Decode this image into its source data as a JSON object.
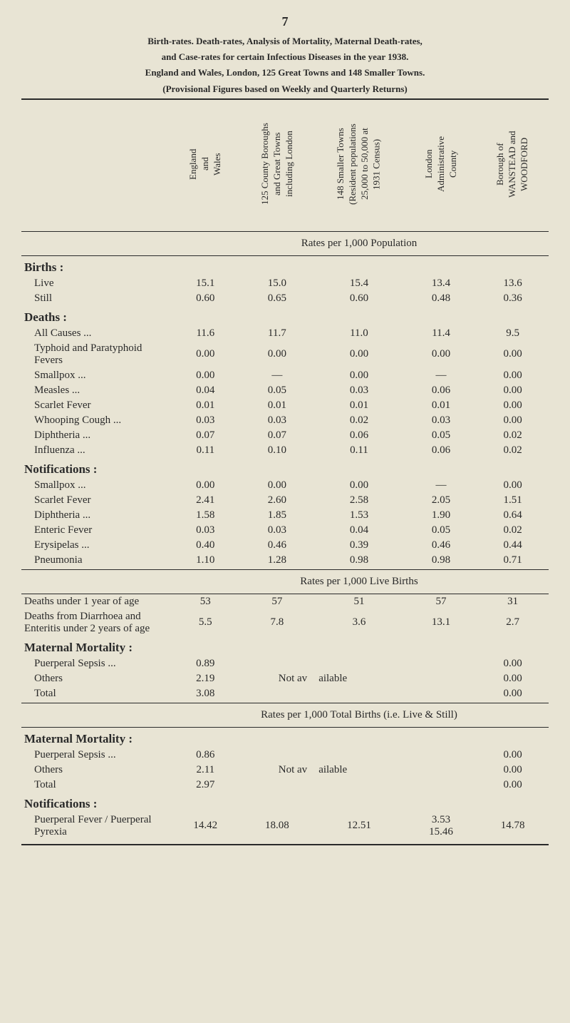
{
  "page_number": "7",
  "title_lines": [
    "Birth-rates. Death-rates, Analysis of Mortality, Maternal Death-rates,",
    "and Case-rates for certain Infectious Diseases in the year 1938.",
    "England and Wales, London, 125 Great Towns and 148 Smaller Towns.",
    "(Provisional Figures based on Weekly and Quarterly Returns)"
  ],
  "columns": [
    "England\nand\nWales",
    "125 County Boroughs\nand Great Towns\nincluding London",
    "148 Smaller Towns\n(Resident populations\n25,000 to 50,000 at\n1931 Census)",
    "London\nAdministrative\nCounty",
    "Borough of\nWANSTEAD and\nWOODFORD"
  ],
  "rates_header_1": "Rates per 1,000 Population",
  "sections_pop": [
    {
      "header": "Births :",
      "rows": [
        {
          "label": "Live",
          "v": [
            "15.1",
            "15.0",
            "15.4",
            "13.4",
            "13.6"
          ]
        },
        {
          "label": "Still",
          "v": [
            "0.60",
            "0.65",
            "0.60",
            "0.48",
            "0.36"
          ]
        }
      ]
    },
    {
      "header": "Deaths :",
      "rows": [
        {
          "label": "All Causes ...",
          "v": [
            "11.6",
            "11.7",
            "11.0",
            "11.4",
            "9.5"
          ]
        },
        {
          "label": "Typhoid and Paratyphoid Fevers",
          "v": [
            "0.00",
            "0.00",
            "0.00",
            "0.00",
            "0.00"
          ]
        },
        {
          "label": "Smallpox ...",
          "v": [
            "0.00",
            "—",
            "0.00",
            "—",
            "0.00"
          ]
        },
        {
          "label": "Measles ...",
          "v": [
            "0.04",
            "0.05",
            "0.03",
            "0.06",
            "0.00"
          ]
        },
        {
          "label": "Scarlet Fever",
          "v": [
            "0.01",
            "0.01",
            "0.01",
            "0.01",
            "0.00"
          ]
        },
        {
          "label": "Whooping Cough ...",
          "v": [
            "0.03",
            "0.03",
            "0.02",
            "0.03",
            "0.00"
          ]
        },
        {
          "label": "Diphtheria ...",
          "v": [
            "0.07",
            "0.07",
            "0.06",
            "0.05",
            "0.02"
          ]
        },
        {
          "label": "Influenza ...",
          "v": [
            "0.11",
            "0.10",
            "0.11",
            "0.06",
            "0.02"
          ]
        }
      ]
    },
    {
      "header": "Notifications :",
      "rows": [
        {
          "label": "Smallpox ...",
          "v": [
            "0.00",
            "0.00",
            "0.00",
            "—",
            "0.00"
          ]
        },
        {
          "label": "Scarlet Fever",
          "v": [
            "2.41",
            "2.60",
            "2.58",
            "2.05",
            "1.51"
          ]
        },
        {
          "label": "Diphtheria ...",
          "v": [
            "1.58",
            "1.85",
            "1.53",
            "1.90",
            "0.64"
          ]
        },
        {
          "label": "Enteric Fever",
          "v": [
            "0.03",
            "0.03",
            "0.04",
            "0.05",
            "0.02"
          ]
        },
        {
          "label": "Erysipelas ...",
          "v": [
            "0.40",
            "0.46",
            "0.39",
            "0.46",
            "0.44"
          ]
        },
        {
          "label": "Pneumonia",
          "v": [
            "1.10",
            "1.28",
            "0.98",
            "0.98",
            "0.71"
          ]
        }
      ]
    }
  ],
  "rates_header_2": "Rates per 1,000 Live Births",
  "sections_live": [
    {
      "header": "",
      "rows": [
        {
          "label": "Deaths under 1 year of age",
          "v": [
            "53",
            "57",
            "51",
            "57",
            "31"
          ]
        },
        {
          "label": "Deaths from Diarrhoea and Enteritis under 2 years of age",
          "v": [
            "5.5",
            "7.8",
            "3.6",
            "13.1",
            "2.7"
          ]
        }
      ]
    },
    {
      "header": "Maternal Mortality :",
      "rows": [
        {
          "label": "Puerperal Sepsis ...",
          "v": [
            "0.89",
            "",
            "",
            "",
            "0.00"
          ]
        },
        {
          "label": "Others",
          "v": [
            "2.19",
            "Not av",
            "ailable",
            "",
            "0.00"
          ]
        },
        {
          "label": "Total",
          "v": [
            "3.08",
            "",
            "",
            "",
            "0.00"
          ]
        }
      ]
    }
  ],
  "rates_header_3": "Rates per 1,000 Total Births (i.e. Live & Still)",
  "sections_total": [
    {
      "header": "Maternal Mortality :",
      "rows": [
        {
          "label": "Puerperal Sepsis ...",
          "v": [
            "0.86",
            "",
            "",
            "",
            "0.00"
          ]
        },
        {
          "label": "Others",
          "v": [
            "2.11",
            "Not av",
            "ailable",
            "",
            "0.00"
          ]
        },
        {
          "label": "Total",
          "v": [
            "2.97",
            "",
            "",
            "",
            "0.00"
          ]
        }
      ]
    },
    {
      "header": "Notifications :",
      "rows": [
        {
          "label": "Puerperal Fever / Puerperal Pyrexia",
          "v": [
            "14.42",
            "18.08",
            "12.51",
            "3.53\n15.46",
            "14.78"
          ]
        }
      ]
    }
  ],
  "styling": {
    "background_color": "#e8e4d4",
    "text_color": "#2a2a2a",
    "font_family": "Times New Roman",
    "body_fontsize": 15,
    "title_fontsize": 13,
    "page_number_fontsize": 18,
    "section_header_fontsize": 17,
    "border_color": "#2a2a2a",
    "col_width_first": 200
  }
}
